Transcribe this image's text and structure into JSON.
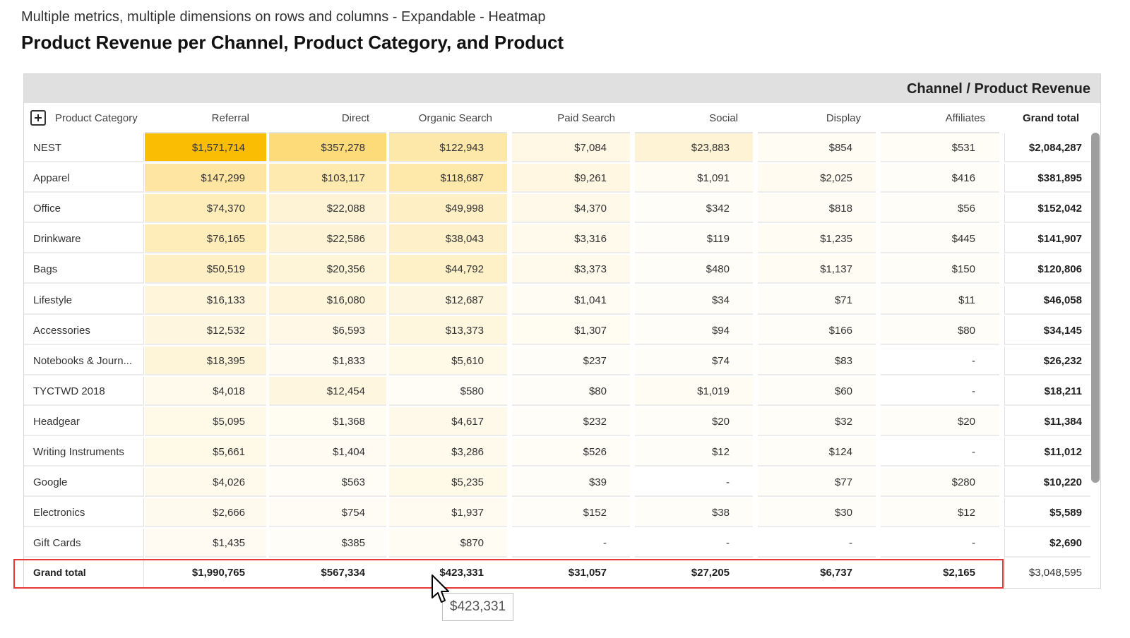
{
  "header": {
    "subtitle": "Multiple metrics, multiple dimensions on rows and columns - Expandable - Heatmap",
    "title": "Product Revenue per Channel, Product Category, and Product"
  },
  "table": {
    "band_label": "Channel / Product Revenue",
    "row_dimension": "Product Category",
    "columns": [
      "Referral",
      "Direct",
      "Organic Search",
      "Paid Search",
      "Social",
      "Display",
      "Affiliates"
    ],
    "grand_total_label": "Grand total",
    "rows": [
      {
        "label": "NEST",
        "values": [
          "$1,571,714",
          "$357,278",
          "$122,943",
          "$7,084",
          "$23,883",
          "$854",
          "$531"
        ],
        "raw": [
          1571714,
          357278,
          122943,
          7084,
          23883,
          854,
          531
        ],
        "total": "$2,084,287"
      },
      {
        "label": "Apparel",
        "values": [
          "$147,299",
          "$103,117",
          "$118,687",
          "$9,261",
          "$1,091",
          "$2,025",
          "$416"
        ],
        "raw": [
          147299,
          103117,
          118687,
          9261,
          1091,
          2025,
          416
        ],
        "total": "$381,895"
      },
      {
        "label": "Office",
        "values": [
          "$74,370",
          "$22,088",
          "$49,998",
          "$4,370",
          "$342",
          "$818",
          "$56"
        ],
        "raw": [
          74370,
          22088,
          49998,
          4370,
          342,
          818,
          56
        ],
        "total": "$152,042"
      },
      {
        "label": "Drinkware",
        "values": [
          "$76,165",
          "$22,586",
          "$38,043",
          "$3,316",
          "$119",
          "$1,235",
          "$445"
        ],
        "raw": [
          76165,
          22586,
          38043,
          3316,
          119,
          1235,
          445
        ],
        "total": "$141,907"
      },
      {
        "label": "Bags",
        "values": [
          "$50,519",
          "$20,356",
          "$44,792",
          "$3,373",
          "$480",
          "$1,137",
          "$150"
        ],
        "raw": [
          50519,
          20356,
          44792,
          3373,
          480,
          1137,
          150
        ],
        "total": "$120,806"
      },
      {
        "label": "Lifestyle",
        "values": [
          "$16,133",
          "$16,080",
          "$12,687",
          "$1,041",
          "$34",
          "$71",
          "$11"
        ],
        "raw": [
          16133,
          16080,
          12687,
          1041,
          34,
          71,
          11
        ],
        "total": "$46,058"
      },
      {
        "label": "Accessories",
        "values": [
          "$12,532",
          "$6,593",
          "$13,373",
          "$1,307",
          "$94",
          "$166",
          "$80"
        ],
        "raw": [
          12532,
          6593,
          13373,
          1307,
          94,
          166,
          80
        ],
        "total": "$34,145"
      },
      {
        "label": "Notebooks & Journ...",
        "values": [
          "$18,395",
          "$1,833",
          "$5,610",
          "$237",
          "$74",
          "$83",
          "-"
        ],
        "raw": [
          18395,
          1833,
          5610,
          237,
          74,
          83,
          0
        ],
        "total": "$26,232"
      },
      {
        "label": "TYCTWD 2018",
        "values": [
          "$4,018",
          "$12,454",
          "$580",
          "$80",
          "$1,019",
          "$60",
          "-"
        ],
        "raw": [
          4018,
          12454,
          580,
          80,
          1019,
          60,
          0
        ],
        "total": "$18,211"
      },
      {
        "label": "Headgear",
        "values": [
          "$5,095",
          "$1,368",
          "$4,617",
          "$232",
          "$20",
          "$32",
          "$20"
        ],
        "raw": [
          5095,
          1368,
          4617,
          232,
          20,
          32,
          20
        ],
        "total": "$11,384"
      },
      {
        "label": "Writing Instruments",
        "values": [
          "$5,661",
          "$1,404",
          "$3,286",
          "$526",
          "$12",
          "$124",
          "-"
        ],
        "raw": [
          5661,
          1404,
          3286,
          526,
          12,
          124,
          0
        ],
        "total": "$11,012"
      },
      {
        "label": "Google",
        "values": [
          "$4,026",
          "$563",
          "$5,235",
          "$39",
          "-",
          "$77",
          "$280"
        ],
        "raw": [
          4026,
          563,
          5235,
          39,
          0,
          77,
          280
        ],
        "total": "$10,220"
      },
      {
        "label": "Electronics",
        "values": [
          "$2,666",
          "$754",
          "$1,937",
          "$152",
          "$38",
          "$30",
          "$12"
        ],
        "raw": [
          2666,
          754,
          1937,
          152,
          38,
          30,
          12
        ],
        "total": "$5,589"
      },
      {
        "label": "Gift Cards",
        "values": [
          "$1,435",
          "$385",
          "$870",
          "-",
          "-",
          "-",
          "-"
        ],
        "raw": [
          1435,
          385,
          870,
          0,
          0,
          0,
          0
        ],
        "total": "$2,690"
      }
    ],
    "grand_total_row": {
      "label": "Grand total",
      "values": [
        "$1,990,765",
        "$567,334",
        "$423,331",
        "$31,057",
        "$27,205",
        "$6,737",
        "$2,165"
      ],
      "total": "$3,048,595"
    },
    "heat_colors": {
      "max": "#fbbc04",
      "min": "#ffffff"
    }
  },
  "tooltip": {
    "text": "$423,331"
  }
}
